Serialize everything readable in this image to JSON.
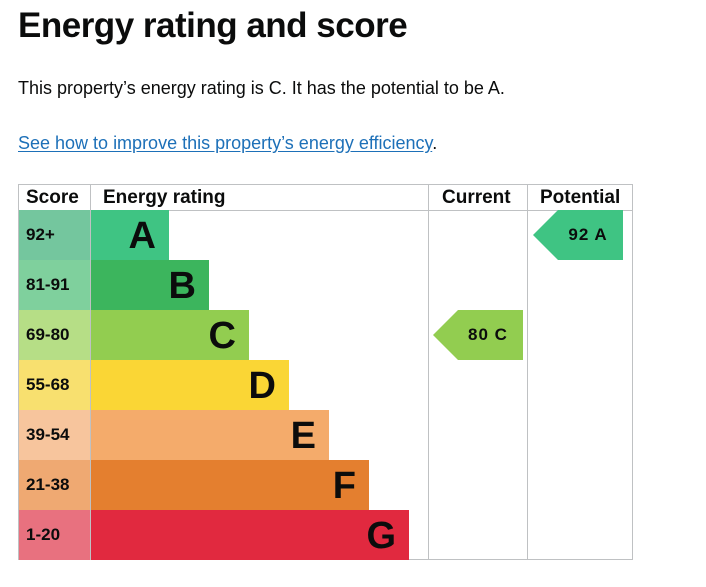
{
  "page": {
    "title": "Energy rating and score",
    "summary": "This property’s energy rating is C. It has the potential to be A.",
    "link_text": "See how to improve this property’s energy efficiency",
    "link_suffix": "."
  },
  "chart_data": {
    "type": "bar",
    "headers": {
      "score": "Score",
      "rating": "Energy rating",
      "current": "Current",
      "potential": "Potential"
    },
    "bands": [
      {
        "letter": "A",
        "range": "92+",
        "color": "#008054",
        "score_color": "#74c69e",
        "width_level": 1
      },
      {
        "letter": "B",
        "range": "81-91",
        "color": "#19b459",
        "score_color": "#7fd09d",
        "width_level": 2
      },
      {
        "letter": "C",
        "range": "69-80",
        "color": "#8dce46",
        "score_color": "#b6de86",
        "width_level": 3
      },
      {
        "letter": "D",
        "range": "55-68",
        "color": "#ffd500",
        "score_color": "#f8e06f",
        "width_level": 4
      },
      {
        "letter": "E",
        "range": "39-54",
        "color": "#fcaa65",
        "score_color": "#f7c59d",
        "width_level": 5
      },
      {
        "letter": "F",
        "range": "21-38",
        "color": "#ef8023",
        "score_color": "#efa972",
        "width_level": 6
      },
      {
        "letter": "G",
        "range": "1-20",
        "color": "#e9153b",
        "score_color": "#e8717f",
        "width_level": 7
      }
    ],
    "bar_colors_rendered": [
      "#3fc483",
      "#3cb55d",
      "#92cd50",
      "#fad635",
      "#f4ab6b",
      "#e47f2f",
      "#e1293f"
    ],
    "current": {
      "score": 80,
      "letter": "C",
      "label": "80 C",
      "color": "#92cd50"
    },
    "potential": {
      "score": 92,
      "letter": "A",
      "label": "92 A",
      "color": "#3fc483"
    }
  }
}
